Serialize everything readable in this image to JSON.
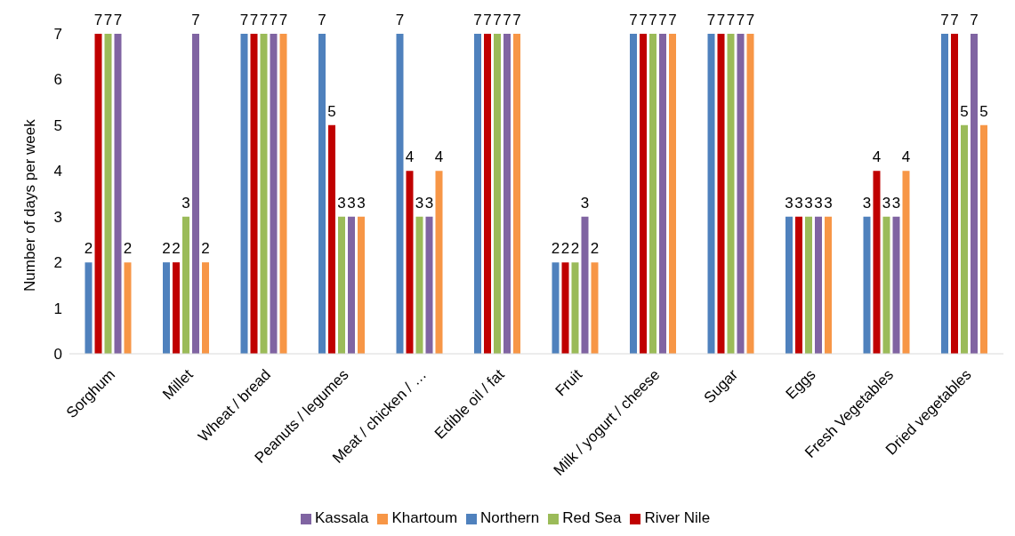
{
  "chart_data": {
    "type": "bar",
    "ylabel": "Number of days per week",
    "categories": [
      "Sorghum",
      "Millet",
      "Wheat / bread",
      "Peanuts / legumes",
      "Meat / chicken / …",
      "Edible oil / fat",
      "Fruit",
      "Milk / yogurt / cheese",
      "Sugar",
      "Eggs",
      "Fresh Vegetables",
      "Dried vegetables"
    ],
    "series": [
      {
        "name": "Northern",
        "color": "#4f81bd",
        "values": [
          2,
          2,
          7,
          7,
          7,
          7,
          2,
          7,
          7,
          3,
          3,
          7
        ]
      },
      {
        "name": "River Nile",
        "color": "#c00000",
        "values": [
          7,
          2,
          7,
          5,
          4,
          7,
          2,
          7,
          7,
          3,
          4,
          7
        ]
      },
      {
        "name": "Red Sea",
        "color": "#9bbb59",
        "values": [
          7,
          3,
          7,
          3,
          3,
          7,
          2,
          7,
          7,
          3,
          3,
          5
        ]
      },
      {
        "name": "Kassala",
        "color": "#8064a2",
        "values": [
          7,
          7,
          7,
          3,
          3,
          7,
          3,
          7,
          7,
          3,
          3,
          7
        ]
      },
      {
        "name": "Khartoum",
        "color": "#f79646",
        "values": [
          2,
          2,
          7,
          3,
          4,
          7,
          2,
          7,
          7,
          3,
          4,
          5
        ]
      }
    ],
    "ylim": [
      0,
      7
    ],
    "yticks": [
      0,
      1,
      2,
      3,
      4,
      5,
      6,
      7
    ],
    "grid": false,
    "legend": "bottom",
    "data_labels": true
  }
}
